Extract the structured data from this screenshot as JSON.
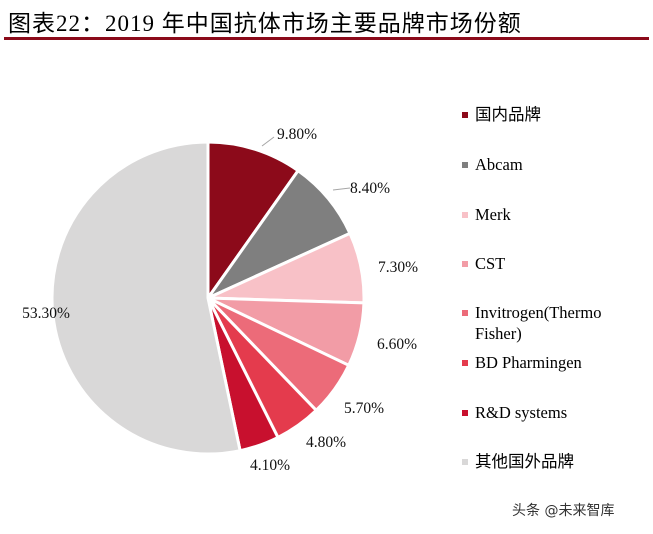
{
  "header": {
    "title": "图表22：2019 年中国抗体市场主要品牌市场份额"
  },
  "chart_data": {
    "type": "pie",
    "title": "",
    "unit": "%",
    "start_angle_deg": 90,
    "direction": "clockwise",
    "slices": [
      {
        "label": "国内品牌",
        "value": 9.8,
        "value_label": "9.80%",
        "color": "#8c0a1a"
      },
      {
        "label": "Abcam",
        "value": 8.4,
        "value_label": "8.40%",
        "color": "#7f7f7f"
      },
      {
        "label": "Merk",
        "value": 7.3,
        "value_label": "7.30%",
        "color": "#f8c1c7"
      },
      {
        "label": "CST",
        "value": 6.6,
        "value_label": "6.60%",
        "color": "#f29ca6"
      },
      {
        "label": "Invitrogen(Thermo Fisher)",
        "value": 5.7,
        "value_label": "5.70%",
        "color": "#ec6b79"
      },
      {
        "label": "BD Pharmingen",
        "value": 4.8,
        "value_label": "4.80%",
        "color": "#e43b4d"
      },
      {
        "label": "R&D systems",
        "value": 4.1,
        "value_label": "4.10%",
        "color": "#c8102e"
      },
      {
        "label": "其他国外品牌",
        "value": 53.3,
        "value_label": "53.30%",
        "color": "#d9d8d8"
      }
    ],
    "legend_position": "right"
  },
  "legend": {
    "items": [
      {
        "label": "国内品牌",
        "color": "#8c0a1a"
      },
      {
        "label": "Abcam",
        "color": "#7f7f7f"
      },
      {
        "label": "Merk",
        "color": "#f8c1c7"
      },
      {
        "label": "CST",
        "color": "#f29ca6"
      },
      {
        "label": "Invitrogen(Thermo Fisher)",
        "color": "#ec6b79"
      },
      {
        "label": "BD Pharmingen",
        "color": "#e43b4d"
      },
      {
        "label": "R&D systems",
        "color": "#c8102e"
      },
      {
        "label": "其他国外品牌",
        "color": "#d9d8d8"
      }
    ]
  },
  "watermark": {
    "text": "头条 @未来智库"
  }
}
